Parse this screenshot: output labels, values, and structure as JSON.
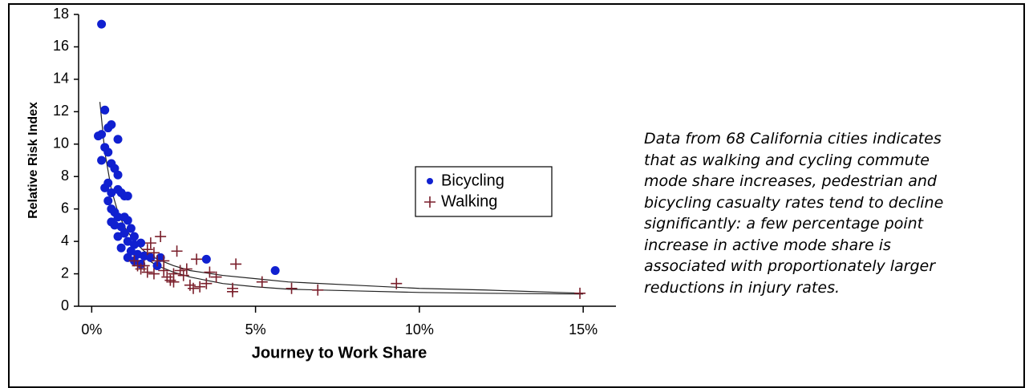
{
  "chart_data": {
    "type": "scatter",
    "xlabel": "Journey to Work Share",
    "ylabel": "Relative Risk Index",
    "xlim": [
      -0.4,
      16
    ],
    "ylim": [
      0,
      18
    ],
    "xticks": [
      {
        "value": 0,
        "label": "0%"
      },
      {
        "value": 5,
        "label": "5%"
      },
      {
        "value": 10,
        "label": "10%"
      },
      {
        "value": 15,
        "label": "15%"
      }
    ],
    "yticks": [
      0,
      2,
      4,
      6,
      8,
      10,
      12,
      14,
      16,
      18
    ],
    "series": [
      {
        "name": "Bicycling",
        "color": "#1020d0",
        "marker": "dot",
        "x": [
          0.3,
          0.2,
          0.3,
          0.4,
          0.5,
          0.6,
          0.8,
          0.4,
          0.5,
          0.3,
          0.6,
          0.7,
          0.8,
          0.5,
          0.4,
          0.6,
          0.8,
          0.9,
          1.0,
          1.1,
          0.5,
          0.6,
          0.7,
          0.8,
          1.0,
          1.1,
          0.6,
          0.7,
          0.9,
          1.2,
          0.8,
          1.0,
          1.3,
          1.1,
          1.3,
          1.5,
          0.9,
          1.2,
          1.4,
          1.1,
          1.3,
          1.6,
          1.8,
          2.1,
          1.5,
          2.0,
          3.5,
          5.6
        ],
        "values": [
          17.4,
          10.5,
          10.6,
          12.1,
          11.0,
          11.2,
          10.3,
          9.8,
          9.5,
          9.0,
          8.8,
          8.5,
          8.1,
          7.6,
          7.3,
          7.0,
          7.2,
          7.0,
          6.8,
          6.8,
          6.5,
          6.0,
          5.8,
          5.5,
          5.5,
          5.3,
          5.2,
          5.0,
          4.9,
          4.8,
          4.3,
          4.5,
          4.3,
          4.0,
          3.8,
          3.9,
          3.6,
          3.4,
          3.2,
          3.0,
          2.8,
          3.1,
          3.0,
          3.0,
          2.6,
          2.5,
          2.9,
          2.2
        ]
      },
      {
        "name": "Walking",
        "color": "#7a1f2b",
        "marker": "plus",
        "x": [
          1.3,
          1.5,
          1.6,
          1.7,
          1.8,
          1.9,
          2.0,
          2.1,
          2.2,
          2.3,
          2.4,
          2.5,
          2.6,
          2.7,
          2.8,
          3.0,
          3.1,
          3.2,
          3.3,
          3.6,
          3.8,
          4.3,
          4.4,
          5.2,
          6.1,
          6.9,
          9.3,
          14.9,
          1.4,
          1.7,
          2.2,
          2.5,
          2.9,
          4.3,
          3.5,
          1.9
        ],
        "values": [
          2.8,
          2.3,
          2.5,
          3.5,
          3.9,
          3.3,
          2.8,
          4.3,
          2.2,
          1.8,
          1.6,
          2.0,
          3.4,
          2.2,
          1.9,
          1.3,
          1.1,
          2.9,
          1.2,
          2.1,
          1.8,
          1.1,
          2.6,
          1.5,
          1.1,
          1.0,
          1.4,
          0.8,
          2.5,
          2.1,
          2.8,
          1.5,
          2.3,
          0.9,
          1.4,
          2.0
        ]
      }
    ],
    "trend_lines": [
      {
        "x": [
          0.25,
          0.4,
          0.6,
          0.8,
          1.0,
          1.3,
          1.6,
          2.0,
          2.5,
          3.0,
          4.0,
          5.0,
          6.0,
          8.0,
          10.0,
          12.0,
          15.0
        ],
        "values": [
          12.6,
          9.5,
          7.2,
          5.8,
          4.9,
          4.0,
          3.4,
          2.9,
          2.5,
          2.2,
          1.9,
          1.7,
          1.5,
          1.3,
          1.1,
          1.0,
          0.8
        ]
      },
      {
        "x": [
          1.3,
          1.6,
          2.0,
          2.5,
          3.0,
          4.0,
          5.0,
          6.0,
          8.0,
          10.0,
          12.0,
          15.0
        ],
        "values": [
          3.4,
          3.0,
          2.5,
          2.1,
          1.8,
          1.4,
          1.2,
          1.05,
          0.95,
          0.85,
          0.8,
          0.75
        ]
      }
    ],
    "legend": "center",
    "note_lines": [
      "Data from 68 California cities indicates",
      "that as walking and cycling commute",
      "mode share increases, pedestrian and",
      "bicycling casualty rates tend to decline",
      "significantly: a few percentage point",
      "increase in active mode share is",
      "associated with proportionately larger",
      "reductions in injury rates."
    ]
  }
}
